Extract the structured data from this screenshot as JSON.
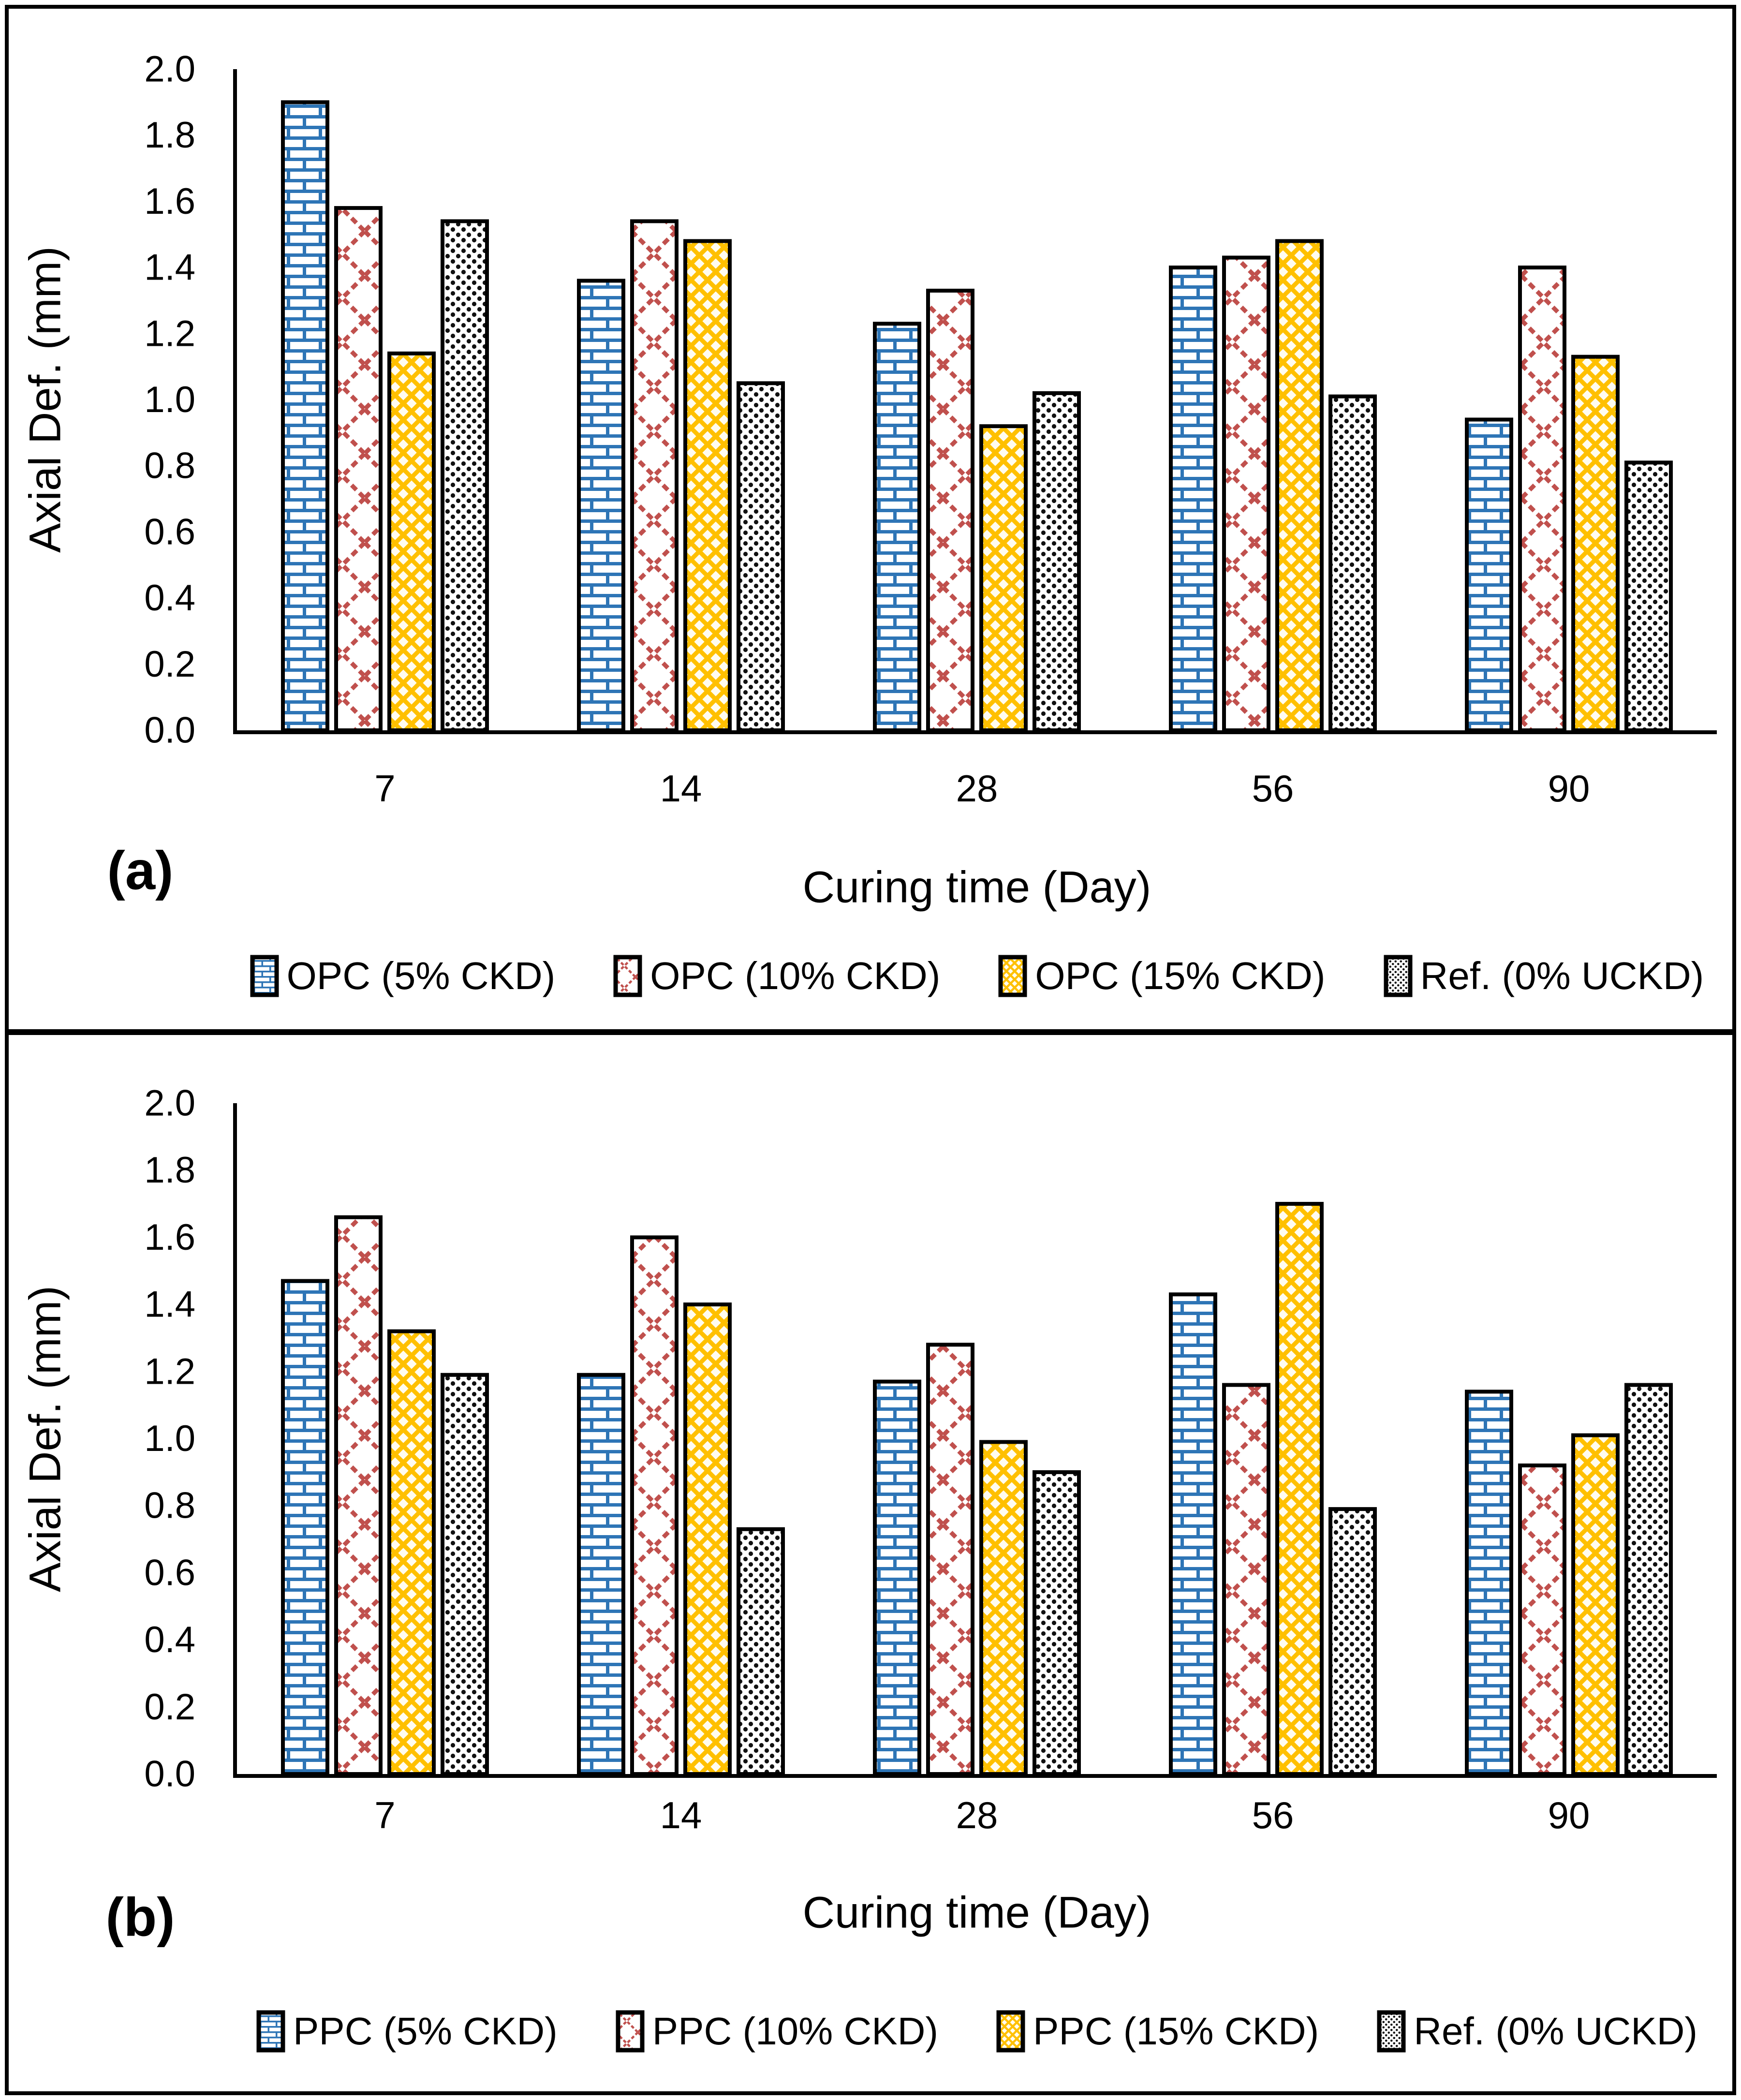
{
  "figure": {
    "border_color": "#000000",
    "background": "#ffffff"
  },
  "colors": {
    "series_blue": "#2E75B6",
    "series_red": "#C0504D",
    "series_yellow": "#FFC000",
    "series_dots": "#111111",
    "axis": "#000000"
  },
  "chart_data": [
    {
      "type": "bar",
      "panel": "(a)",
      "title": "",
      "xlabel": "Curing time (Day)",
      "ylabel": "Axial Def. (mm)",
      "ylim": [
        0,
        2.0
      ],
      "ytick_step": 0.2,
      "yticks": [
        "0.0",
        "0.2",
        "0.4",
        "0.6",
        "0.8",
        "1.0",
        "1.2",
        "1.4",
        "1.6",
        "1.8",
        "2.0"
      ],
      "grid": false,
      "legend_position": "bottom",
      "categories": [
        "7",
        "14",
        "28",
        "56",
        "90"
      ],
      "series": [
        {
          "name": "OPC (5% CKD)",
          "pattern": "brick-blue",
          "color": "#2E75B6",
          "values": [
            1.9,
            1.36,
            1.23,
            1.4,
            0.94
          ]
        },
        {
          "name": "OPC (10% CKD)",
          "pattern": "cross-red",
          "color": "#C0504D",
          "values": [
            1.58,
            1.54,
            1.33,
            1.43,
            1.4
          ]
        },
        {
          "name": "OPC (15% CKD)",
          "pattern": "diamond-yellow",
          "color": "#FFC000",
          "values": [
            1.14,
            1.48,
            0.92,
            1.48,
            1.13
          ]
        },
        {
          "name": "Ref. (0% UCKD)",
          "pattern": "dots-black",
          "color": "#111111",
          "values": [
            1.54,
            1.05,
            1.02,
            1.01,
            0.81
          ]
        }
      ]
    },
    {
      "type": "bar",
      "panel": "(b)",
      "title": "",
      "xlabel": "Curing time (Day)",
      "ylabel": "Axial Def. (mm)",
      "ylim": [
        0,
        2.0
      ],
      "ytick_step": 0.2,
      "yticks": [
        "0.0",
        "0.2",
        "0.4",
        "0.6",
        "0.8",
        "1.0",
        "1.2",
        "1.4",
        "1.6",
        "1.8",
        "2.0"
      ],
      "grid": false,
      "legend_position": "bottom",
      "categories": [
        "7",
        "14",
        "28",
        "56",
        "90"
      ],
      "series": [
        {
          "name": "PPC (5% CKD)",
          "pattern": "brick-blue",
          "color": "#2E75B6",
          "values": [
            1.47,
            1.19,
            1.17,
            1.43,
            1.14
          ]
        },
        {
          "name": "PPC (10% CKD)",
          "pattern": "cross-red",
          "color": "#C0504D",
          "values": [
            1.66,
            1.6,
            1.28,
            1.16,
            0.92
          ]
        },
        {
          "name": "PPC (15% CKD)",
          "pattern": "diamond-yellow",
          "color": "#FFC000",
          "values": [
            1.32,
            1.4,
            0.99,
            1.7,
            1.01
          ]
        },
        {
          "name": "Ref. (0% UCKD)",
          "pattern": "dots-black",
          "color": "#111111",
          "values": [
            1.19,
            0.73,
            0.9,
            0.79,
            1.16
          ]
        }
      ]
    }
  ]
}
